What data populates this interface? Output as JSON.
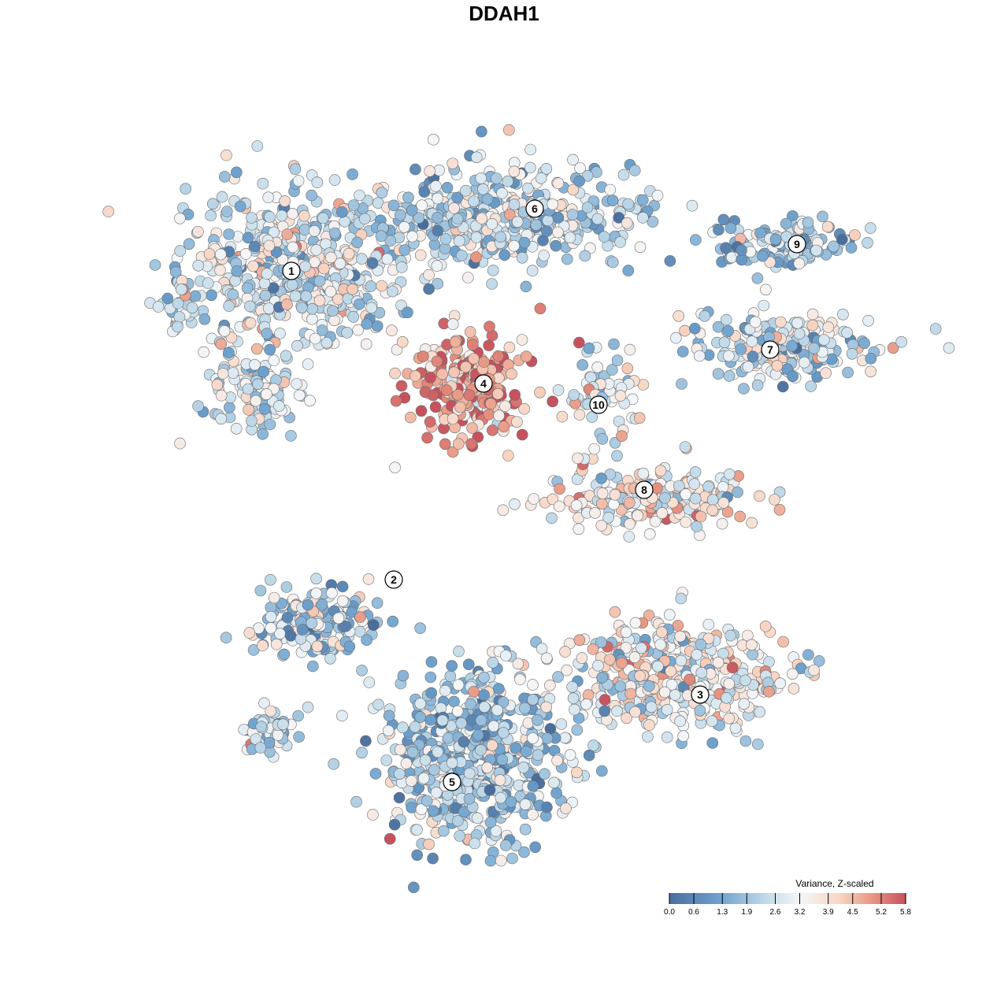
{
  "chart_data": {
    "type": "scatter",
    "title": "DDAH1",
    "xlabel": "",
    "ylabel": "",
    "grid": false,
    "legend": {
      "title": "Variance, Z-scaled",
      "placement": "bottom-right",
      "ticks": [
        "0.0",
        "0.6",
        "1.3",
        "1.9",
        "2.6",
        "3.2",
        "3.9",
        "4.5",
        "5.2",
        "5.8"
      ],
      "min": 0.0,
      "max": 5.8
    },
    "colors": {
      "low": "#4a6e9c",
      "mid_low": "#6fa3cf",
      "mid": "#f4f6f8",
      "mid_high": "#efb8a0",
      "high": "#c6525e"
    },
    "clusters": [
      {
        "label": "1",
        "mean_value": 2.7
      },
      {
        "label": "2",
        "mean_value": 2.2
      },
      {
        "label": "3",
        "mean_value": 3.2
      },
      {
        "label": "4",
        "mean_value": 4.9
      },
      {
        "label": "5",
        "mean_value": 2.2
      },
      {
        "label": "6",
        "mean_value": 2.4
      },
      {
        "label": "7",
        "mean_value": 2.6
      },
      {
        "label": "8",
        "mean_value": 3.4
      },
      {
        "label": "9",
        "mean_value": 2.1
      },
      {
        "label": "10",
        "mean_value": 3.0
      }
    ]
  }
}
